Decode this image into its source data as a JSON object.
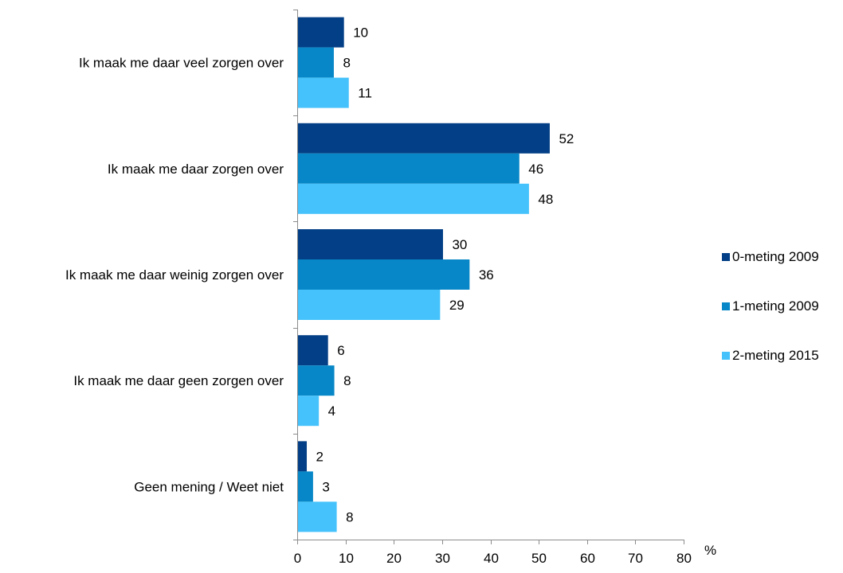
{
  "chart_data": {
    "type": "bar",
    "orientation": "horizontal",
    "categories": [
      "Ik maak me daar veel zorgen over",
      "Ik maak me daar zorgen over",
      "Ik maak me daar weinig zorgen over",
      "Ik maak me daar geen zorgen over",
      "Geen mening / Weet niet"
    ],
    "series": [
      {
        "name": "0-meting 2009",
        "color": "#033f86",
        "values": [
          10,
          52,
          30,
          6,
          2
        ],
        "plot_values": [
          9.6,
          52.2,
          30.1,
          6.3,
          1.9
        ]
      },
      {
        "name": "1-meting 2009",
        "color": "#0787c7",
        "values": [
          8,
          46,
          36,
          8,
          3
        ],
        "plot_values": [
          7.5,
          45.9,
          35.6,
          7.6,
          3.2
        ]
      },
      {
        "name": "2-meting 2015",
        "color": "#45c2fb",
        "values": [
          11,
          48,
          29,
          4,
          8
        ],
        "plot_values": [
          10.6,
          47.9,
          29.5,
          4.4,
          8.1
        ]
      }
    ],
    "x_ticks": [
      "0",
      "10",
      "20",
      "30",
      "40",
      "50",
      "60",
      "70",
      "80"
    ],
    "xlim": [
      0,
      80
    ],
    "unit": "%",
    "grid": false,
    "legend_position": "right"
  }
}
